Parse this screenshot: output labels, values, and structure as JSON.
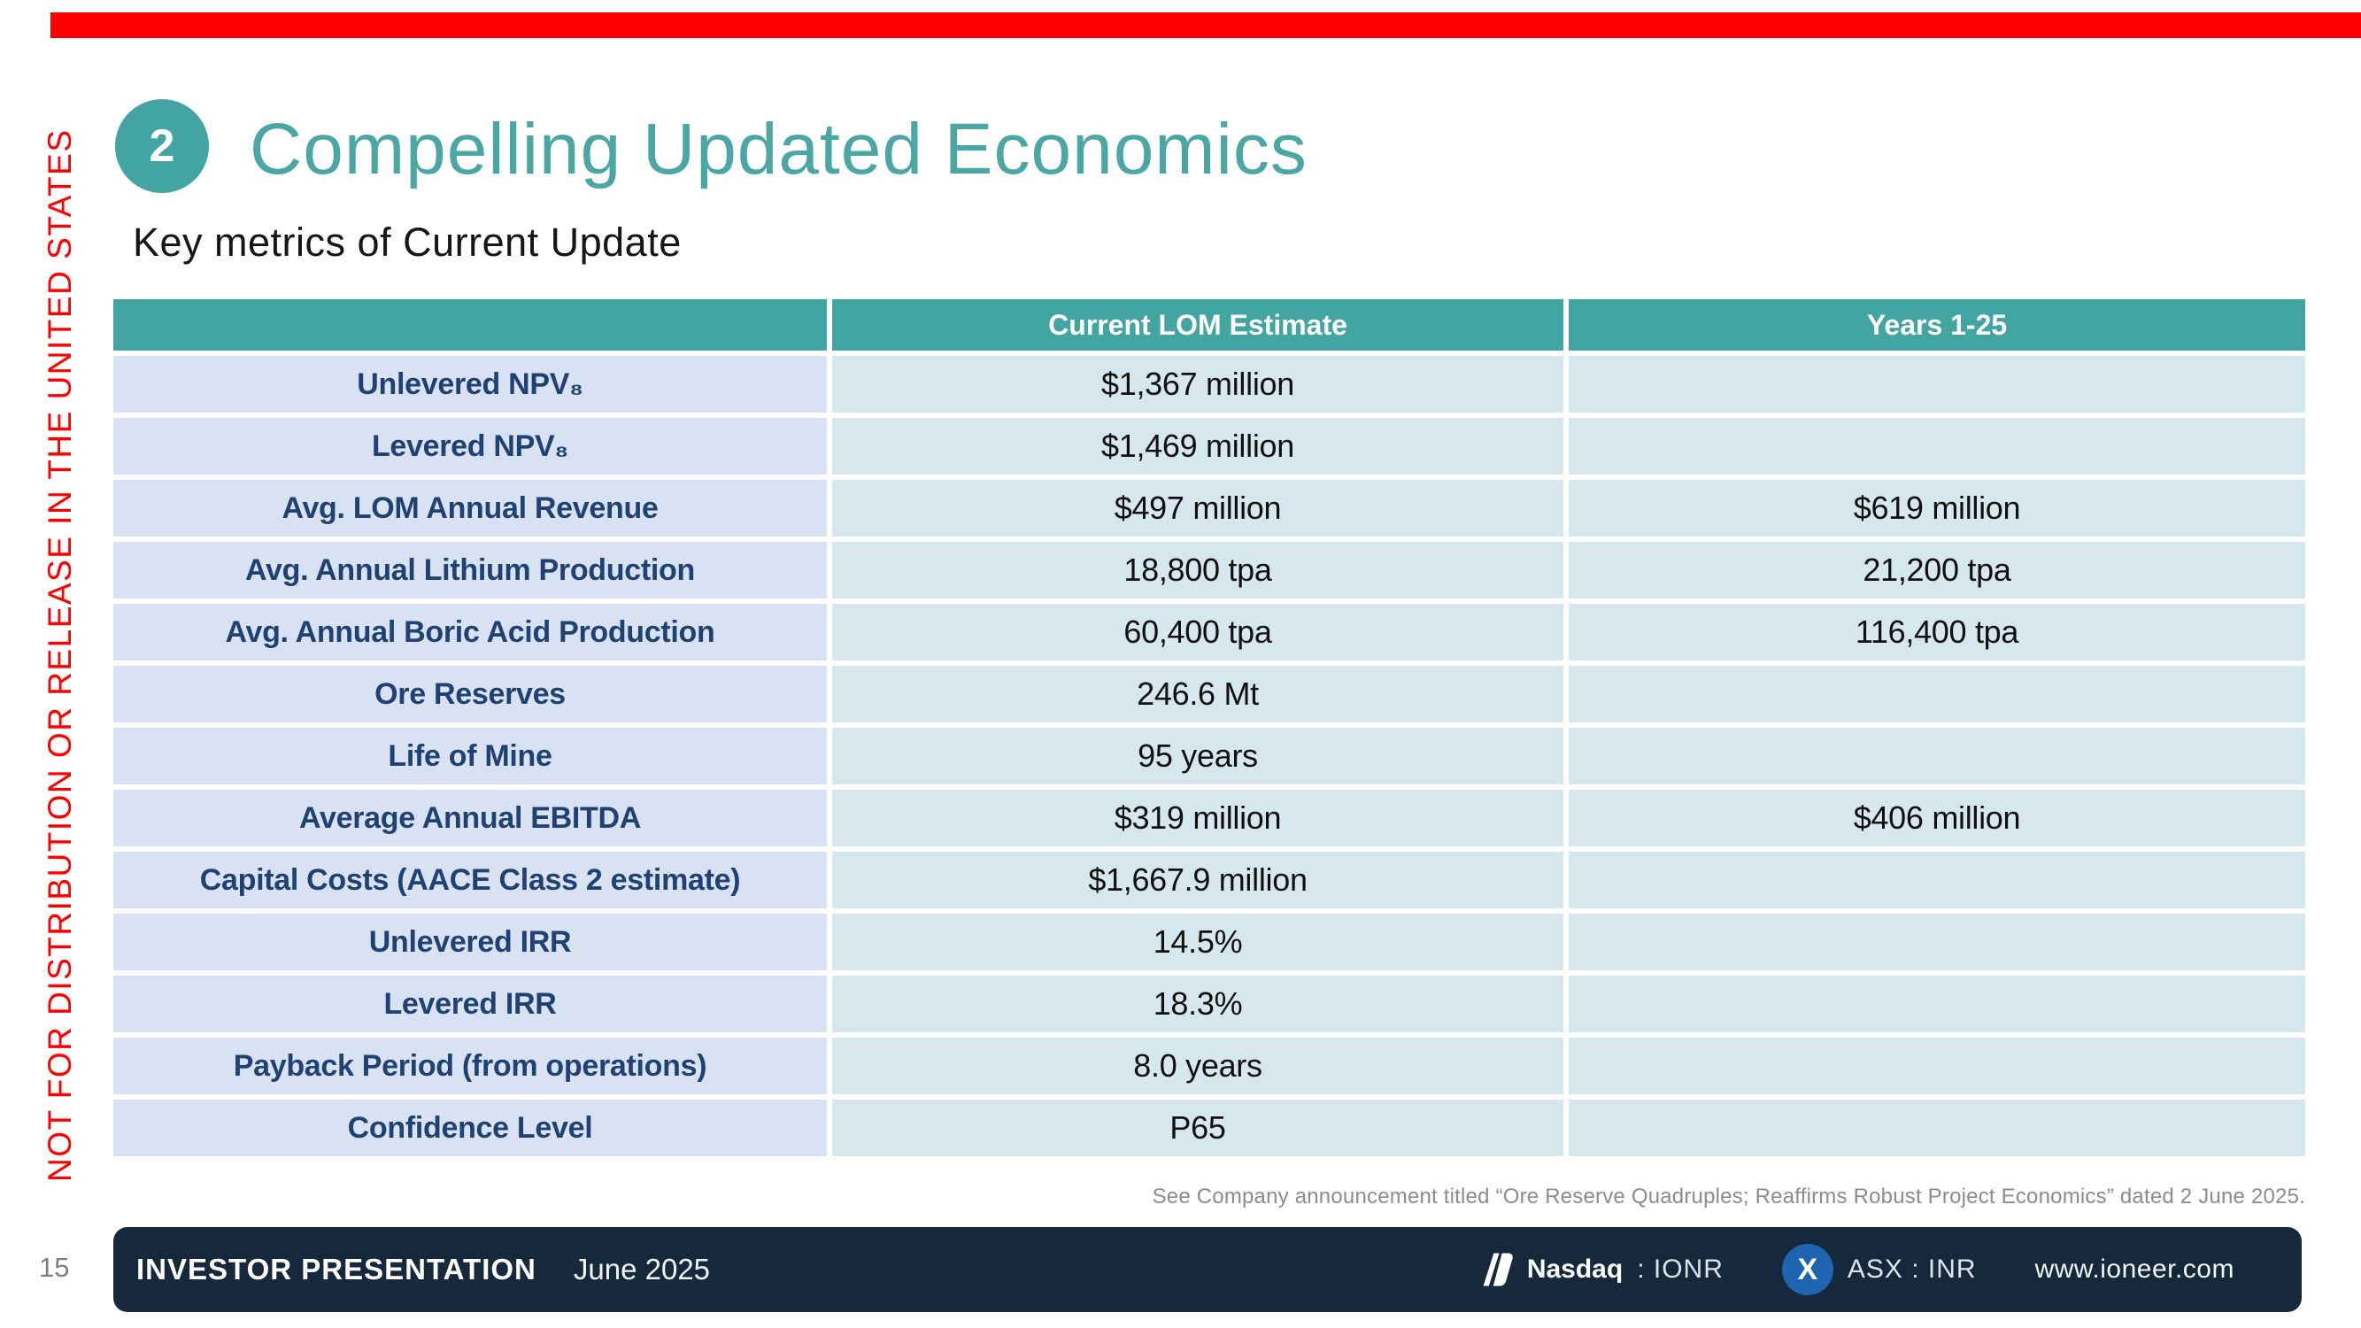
{
  "slide": {
    "disclaimer_vertical": "NOT FOR DISTRIBUTION OR RELEASE IN THE UNITED STATES",
    "badge_number": "2",
    "title": "Compelling Updated Economics",
    "subtitle": "Key metrics of Current Update",
    "footnote": "See Company announcement titled “Ore Reserve Quadruples; Reaffirms Robust Project Economics” dated 2 June 2025."
  },
  "table": {
    "columns": [
      "",
      "Current LOM Estimate",
      "Years 1-25"
    ],
    "rows": [
      {
        "label": "Unlevered NPV₈",
        "current": "$1,367 million",
        "years": ""
      },
      {
        "label": "Levered NPV₈",
        "current": "$1,469 million",
        "years": ""
      },
      {
        "label": "Avg. LOM Annual Revenue",
        "current": "$497 million",
        "years": "$619 million"
      },
      {
        "label": "Avg. Annual Lithium Production",
        "current": "18,800 tpa",
        "years": "21,200 tpa"
      },
      {
        "label": "Avg. Annual Boric Acid Production",
        "current": "60,400 tpa",
        "years": "116,400 tpa"
      },
      {
        "label": "Ore Reserves",
        "current": "246.6 Mt",
        "years": ""
      },
      {
        "label": "Life of Mine",
        "current": "95 years",
        "years": ""
      },
      {
        "label": "Average Annual EBITDA",
        "current": "$319 million",
        "years": "$406 million"
      },
      {
        "label": "Capital Costs (AACE Class 2 estimate)",
        "current": "$1,667.9 million",
        "years": ""
      },
      {
        "label": "Unlevered IRR",
        "current": "14.5%",
        "years": ""
      },
      {
        "label": "Levered IRR",
        "current": "18.3%",
        "years": ""
      },
      {
        "label": "Payback Period (from operations)",
        "current": "8.0 years",
        "years": ""
      },
      {
        "label": "Confidence Level",
        "current": "P65",
        "years": ""
      }
    ]
  },
  "footer": {
    "page_number": "15",
    "presentation_label": "INVESTOR PRESENTATION",
    "date": "June 2025",
    "nasdaq_name": "Nasdaq",
    "nasdaq_ticker": ": IONR",
    "asx_listing": "ASX : INR",
    "asx_icon_letter": "X",
    "website": "www.ioneer.com"
  },
  "colors": {
    "accent-teal": "#42A5A1",
    "title-teal": "#4BA7A3",
    "warning-red": "#FF0000",
    "label-navy": "#1F4273",
    "label-cell-bg": "#D9E2F3",
    "value-cell-bg": "#D7E7EE",
    "footer-navy": "#16293C",
    "asx-blue": "#1E64B0",
    "footnote-gray": "#8C8C8C"
  }
}
